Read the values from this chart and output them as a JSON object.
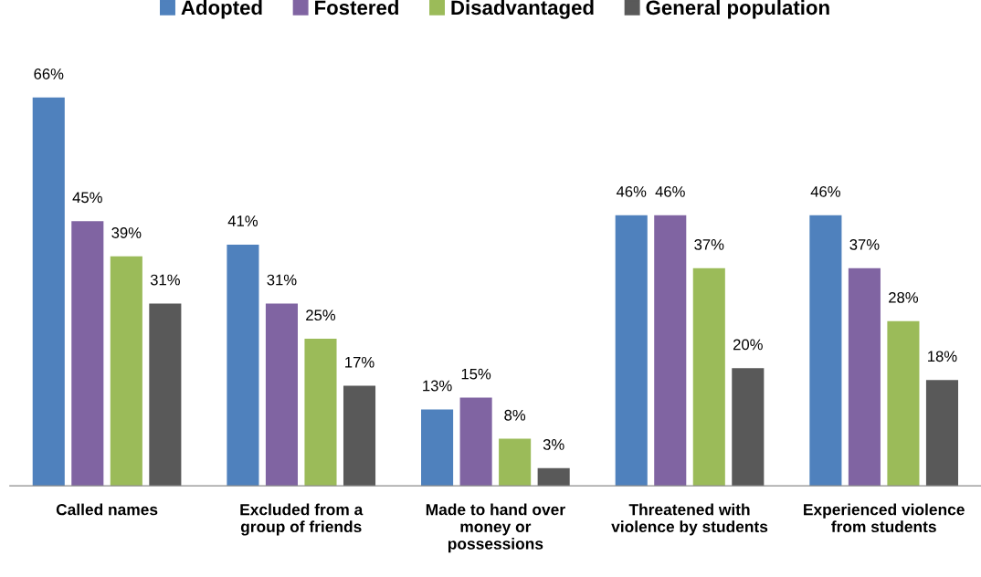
{
  "chart_data": {
    "type": "bar",
    "categories": [
      "Called names",
      "Excluded from a\ngroup of friends",
      "Made to hand over\nmoney or\npossessions",
      "Threatened with\nviolence by students",
      "Experienced violence\nfrom students"
    ],
    "series": [
      {
        "name": "Adopted",
        "color": "#4f81bd",
        "values": [
          66,
          41,
          13,
          46,
          46
        ],
        "value_labels": [
          "66%",
          "41%",
          "13%",
          "46%",
          "46%"
        ]
      },
      {
        "name": "Fostered",
        "color": "#8064a2",
        "values": [
          45,
          31,
          15,
          46,
          37
        ],
        "value_labels": [
          "45%",
          "31%",
          "15%",
          "46%",
          "37%"
        ]
      },
      {
        "name": "Disadvantaged",
        "color": "#9bbb59",
        "values": [
          39,
          25,
          8,
          37,
          28
        ],
        "value_labels": [
          "39%",
          "25%",
          "8%",
          "37%",
          "28%"
        ]
      },
      {
        "name": "General population",
        "color": "#595959",
        "values": [
          31,
          17,
          3,
          20,
          18
        ],
        "value_labels": [
          "31%",
          "17%",
          "3%",
          "20%",
          "18%"
        ]
      }
    ],
    "legend": "top",
    "grid": false,
    "tick_labels": "x"
  }
}
